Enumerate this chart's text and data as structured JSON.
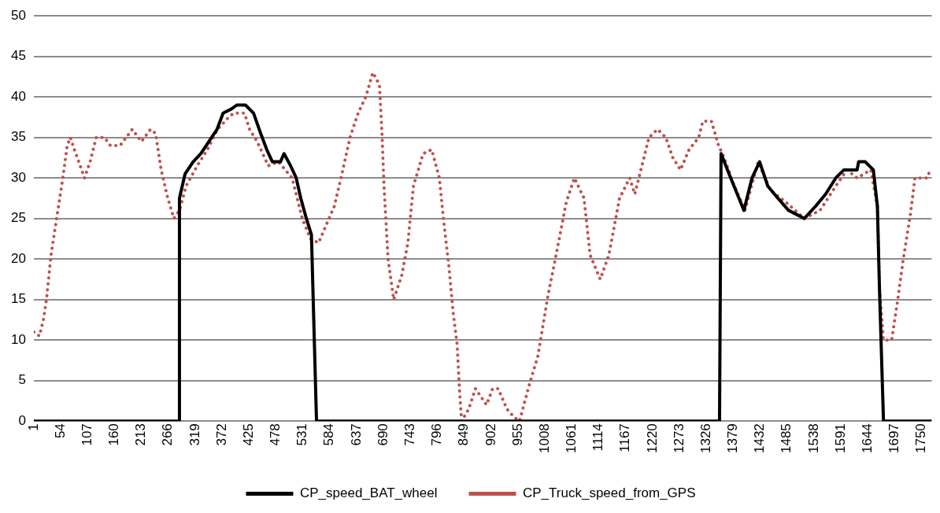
{
  "chart_data": {
    "type": "line",
    "xlim": [
      1,
      1770
    ],
    "xticks": [
      1,
      54,
      107,
      160,
      213,
      266,
      319,
      372,
      425,
      478,
      531,
      584,
      637,
      690,
      743,
      796,
      849,
      902,
      955,
      1008,
      1061,
      1114,
      1167,
      1220,
      1273,
      1326,
      1379,
      1432,
      1485,
      1538,
      1591,
      1644,
      1697,
      1750
    ],
    "ylim": [
      0,
      50
    ],
    "yticks": [
      0,
      5,
      10,
      15,
      20,
      25,
      30,
      35,
      40,
      45,
      50
    ],
    "grid": "y",
    "legend": "bottom",
    "marker": "none",
    "series": [
      {
        "name": "CP_speed_BAT_wheel",
        "color": "#000000",
        "line_style": "solid",
        "x": [
          1,
          287,
          288,
          299,
          315,
          330,
          346,
          362,
          374,
          390,
          401,
          418,
          434,
          448,
          460,
          471,
          487,
          494,
          507,
          518,
          527,
          538,
          548,
          558,
          1352,
          1355,
          1374,
          1400,
          1416,
          1431,
          1447,
          1467,
          1488,
          1519,
          1541,
          1561,
          1581,
          1597,
          1623,
          1626,
          1639,
          1655,
          1663,
          1667,
          1675,
          1770
        ],
        "values": [
          0,
          0,
          27.5,
          30.5,
          32,
          33,
          34.5,
          36,
          38,
          38.5,
          39,
          39,
          38,
          35.5,
          33.5,
          32,
          32,
          33,
          31.5,
          30,
          27.5,
          25,
          23,
          0,
          0,
          33,
          30,
          26,
          30,
          32,
          29,
          27.5,
          26,
          25,
          26.5,
          28,
          30,
          31,
          31,
          32,
          32,
          31,
          26.5,
          16.5,
          0,
          0
        ]
      },
      {
        "name": "CP_Truck_speed_from_GPS",
        "color": "#c0504d",
        "line_style": "dotted",
        "x": [
          1,
          12,
          20,
          26,
          35,
          46,
          57,
          67,
          73,
          81,
          101,
          112,
          124,
          140,
          152,
          171,
          195,
          213,
          231,
          241,
          252,
          265,
          277,
          288,
          301,
          323,
          343,
          363,
          385,
          395,
          416,
          426,
          441,
          463,
          483,
          510,
          530,
          546,
          562,
          593,
          608,
          624,
          640,
          655,
          669,
          682,
          687,
          691,
          699,
          710,
          726,
          738,
          749,
          768,
          785,
          800,
          808,
          819,
          827,
          835,
          840,
          844,
          858,
          871,
          893,
          905,
          916,
          933,
          947,
          958,
          975,
          994,
          1014,
          1030,
          1050,
          1066,
          1085,
          1097,
          1117,
          1134,
          1155,
          1175,
          1185,
          1197,
          1213,
          1230,
          1246,
          1260,
          1275,
          1292,
          1311,
          1319,
          1336,
          1350,
          1361,
          1378,
          1402,
          1428,
          1452,
          1483,
          1519,
          1550,
          1581,
          1603,
          1623,
          1650,
          1663,
          1667,
          1675,
          1691,
          1702,
          1714,
          1728,
          1737,
          1761,
          1767
        ],
        "values": [
          11,
          10.5,
          12.5,
          15,
          20.5,
          25,
          29.5,
          34,
          35,
          33.5,
          30,
          32,
          35,
          35,
          34,
          34,
          36,
          34.5,
          36,
          35.5,
          31,
          27.5,
          25,
          26,
          29,
          31.5,
          33.5,
          36,
          37.5,
          38,
          38,
          36,
          34.5,
          31.5,
          32,
          30,
          25,
          22.5,
          22,
          26.5,
          30.5,
          35,
          38,
          40,
          43,
          41.5,
          35.5,
          29,
          20,
          15,
          18,
          22,
          29,
          33,
          33.5,
          30,
          25,
          19,
          13.5,
          9.5,
          3.5,
          0,
          1.5,
          4,
          2,
          4,
          4,
          1.5,
          0.5,
          0,
          4,
          8,
          15.5,
          20.5,
          27,
          30,
          27.5,
          20.5,
          17.5,
          20.5,
          27.5,
          30,
          28,
          31,
          35,
          36,
          35,
          32.5,
          31,
          33.5,
          35,
          37,
          37,
          34,
          32.5,
          29.5,
          26,
          32,
          28.5,
          27,
          25,
          26,
          29,
          31,
          30,
          31,
          26.5,
          16.5,
          10,
          10,
          14.5,
          20,
          25.5,
          30,
          30,
          31
        ]
      }
    ]
  }
}
